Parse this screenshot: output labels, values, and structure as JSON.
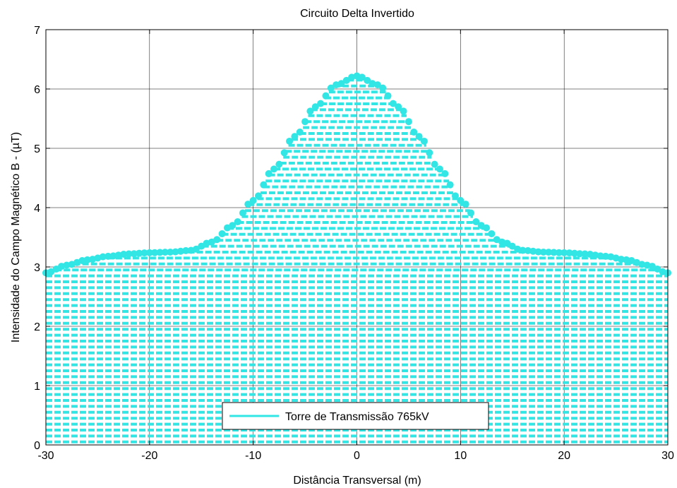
{
  "chart_data": {
    "type": "area",
    "title": "Circuito Delta Invertido",
    "xlabel": "Distância Transversal (m)",
    "ylabel": "Intensidade do Campo Magnético B - (µT)",
    "xlim": [
      -30,
      30
    ],
    "ylim": [
      0,
      7
    ],
    "xticks": [
      -30,
      -20,
      -10,
      0,
      10,
      20,
      30
    ],
    "yticks": [
      0,
      1,
      2,
      3,
      4,
      5,
      6,
      7
    ],
    "xtick_labels": [
      "-30",
      "-20",
      "-10",
      "0",
      "10",
      "20",
      "30"
    ],
    "ytick_labels": [
      "0",
      "1",
      "2",
      "3",
      "4",
      "5",
      "6",
      "7"
    ],
    "grid": true,
    "legend": "bottom-center",
    "series": [
      {
        "name": "Torre de Transmissão 765kV",
        "color": "#33e6e6",
        "x": [
          -30,
          -28,
          -26,
          -24,
          -22,
          -20,
          -18,
          -16,
          -14,
          -12,
          -10,
          -8,
          -6,
          -4,
          -2,
          0,
          2,
          4,
          6,
          8,
          10,
          12,
          14,
          16,
          18,
          20,
          22,
          24,
          26,
          28,
          30
        ],
        "y": [
          2.9,
          3.03,
          3.12,
          3.18,
          3.22,
          3.24,
          3.25,
          3.28,
          3.42,
          3.7,
          4.12,
          4.65,
          5.2,
          5.7,
          6.07,
          6.22,
          6.07,
          5.7,
          5.2,
          4.65,
          4.12,
          3.7,
          3.42,
          3.28,
          3.25,
          3.24,
          3.22,
          3.18,
          3.12,
          3.03,
          2.9
        ]
      }
    ]
  }
}
